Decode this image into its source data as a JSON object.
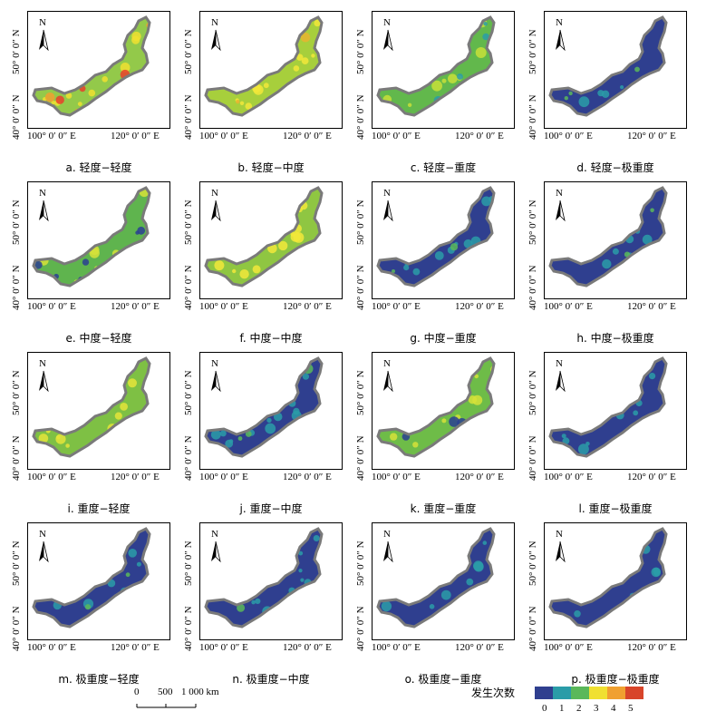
{
  "axes": {
    "lat_top": "50° 0′ 0″ N",
    "lat_bottom": "40° 0′ 0″ N",
    "lon_left": "100° 0′ 0″ E",
    "lon_right": "120° 0′ 0″ E"
  },
  "north_label": "N",
  "panels": [
    {
      "caption": "a.  轻度−轻度",
      "base": "#93c94a",
      "spots": [
        {
          "c": "#f0e030",
          "n": 10
        },
        {
          "c": "#e8402a",
          "n": 4
        },
        {
          "c": "#f0a030",
          "n": 3
        }
      ]
    },
    {
      "caption": "b.  轻度−中度",
      "base": "#a7cf3c",
      "spots": [
        {
          "c": "#f2e83a",
          "n": 12
        },
        {
          "c": "#e8b430",
          "n": 2
        }
      ]
    },
    {
      "caption": "c.  轻度−重度",
      "base": "#62b84c",
      "spots": [
        {
          "c": "#c8df3a",
          "n": 10
        },
        {
          "c": "#2a9ca8",
          "n": 4
        }
      ]
    },
    {
      "caption": "d.  轻度−极重度",
      "base": "#2f3f8f",
      "spots": [
        {
          "c": "#2a9ca8",
          "n": 6
        },
        {
          "c": "#5ab85a",
          "n": 3
        }
      ]
    },
    {
      "caption": "e.  中度−轻度",
      "base": "#5fb44e",
      "spots": [
        {
          "c": "#d6e23a",
          "n": 7
        },
        {
          "c": "#2a3f93",
          "n": 6
        }
      ]
    },
    {
      "caption": "f.  中度−中度",
      "base": "#8fc642",
      "spots": [
        {
          "c": "#f2e83a",
          "n": 12
        }
      ]
    },
    {
      "caption": "g.  中度−重度",
      "base": "#2f3f8f",
      "spots": [
        {
          "c": "#2a9ca8",
          "n": 10
        },
        {
          "c": "#5ab85a",
          "n": 3
        }
      ]
    },
    {
      "caption": "h.  中度−极重度",
      "base": "#2f3f8f",
      "spots": [
        {
          "c": "#2a9ca8",
          "n": 6
        },
        {
          "c": "#5ab85a",
          "n": 2
        }
      ]
    },
    {
      "caption": "i.  重度−轻度",
      "base": "#7ec044",
      "spots": [
        {
          "c": "#e4e43a",
          "n": 10
        }
      ]
    },
    {
      "caption": "j.  重度−中度",
      "base": "#2f3f8f",
      "spots": [
        {
          "c": "#2a9ca8",
          "n": 12
        },
        {
          "c": "#5ab85a",
          "n": 3
        }
      ]
    },
    {
      "caption": "k.  重度−重度",
      "base": "#6ebc48",
      "spots": [
        {
          "c": "#d6e23a",
          "n": 8
        },
        {
          "c": "#2a3f93",
          "n": 3
        }
      ]
    },
    {
      "caption": "l.  重度−极重度",
      "base": "#2f3f8f",
      "spots": [
        {
          "c": "#2a9ca8",
          "n": 8
        }
      ]
    },
    {
      "caption": "m.  极重度−轻度",
      "base": "#2f3f8f",
      "spots": [
        {
          "c": "#2a9ca8",
          "n": 6
        },
        {
          "c": "#5ab85a",
          "n": 2
        }
      ]
    },
    {
      "caption": "n.  极重度−中度",
      "base": "#2f3f8f",
      "spots": [
        {
          "c": "#2a9ca8",
          "n": 9
        },
        {
          "c": "#5ab85a",
          "n": 2
        }
      ]
    },
    {
      "caption": "o.  极重度−重度",
      "base": "#2f3f8f",
      "spots": [
        {
          "c": "#2a9ca8",
          "n": 7
        }
      ]
    },
    {
      "caption": "p.  极重度−极重度",
      "base": "#2f3f8f",
      "spots": [
        {
          "c": "#2a9ca8",
          "n": 6
        }
      ]
    }
  ],
  "scale_bar": {
    "t0": "0",
    "t1": "500",
    "t2": "1 000 km"
  },
  "legend": {
    "title": "发生次数",
    "labels": [
      "0",
      "1",
      "2",
      "3",
      "4",
      "5"
    ],
    "colors": [
      "#2f3f8f",
      "#2a9ca8",
      "#5ab85a",
      "#f0e030",
      "#f0a030",
      "#d8452a"
    ]
  }
}
